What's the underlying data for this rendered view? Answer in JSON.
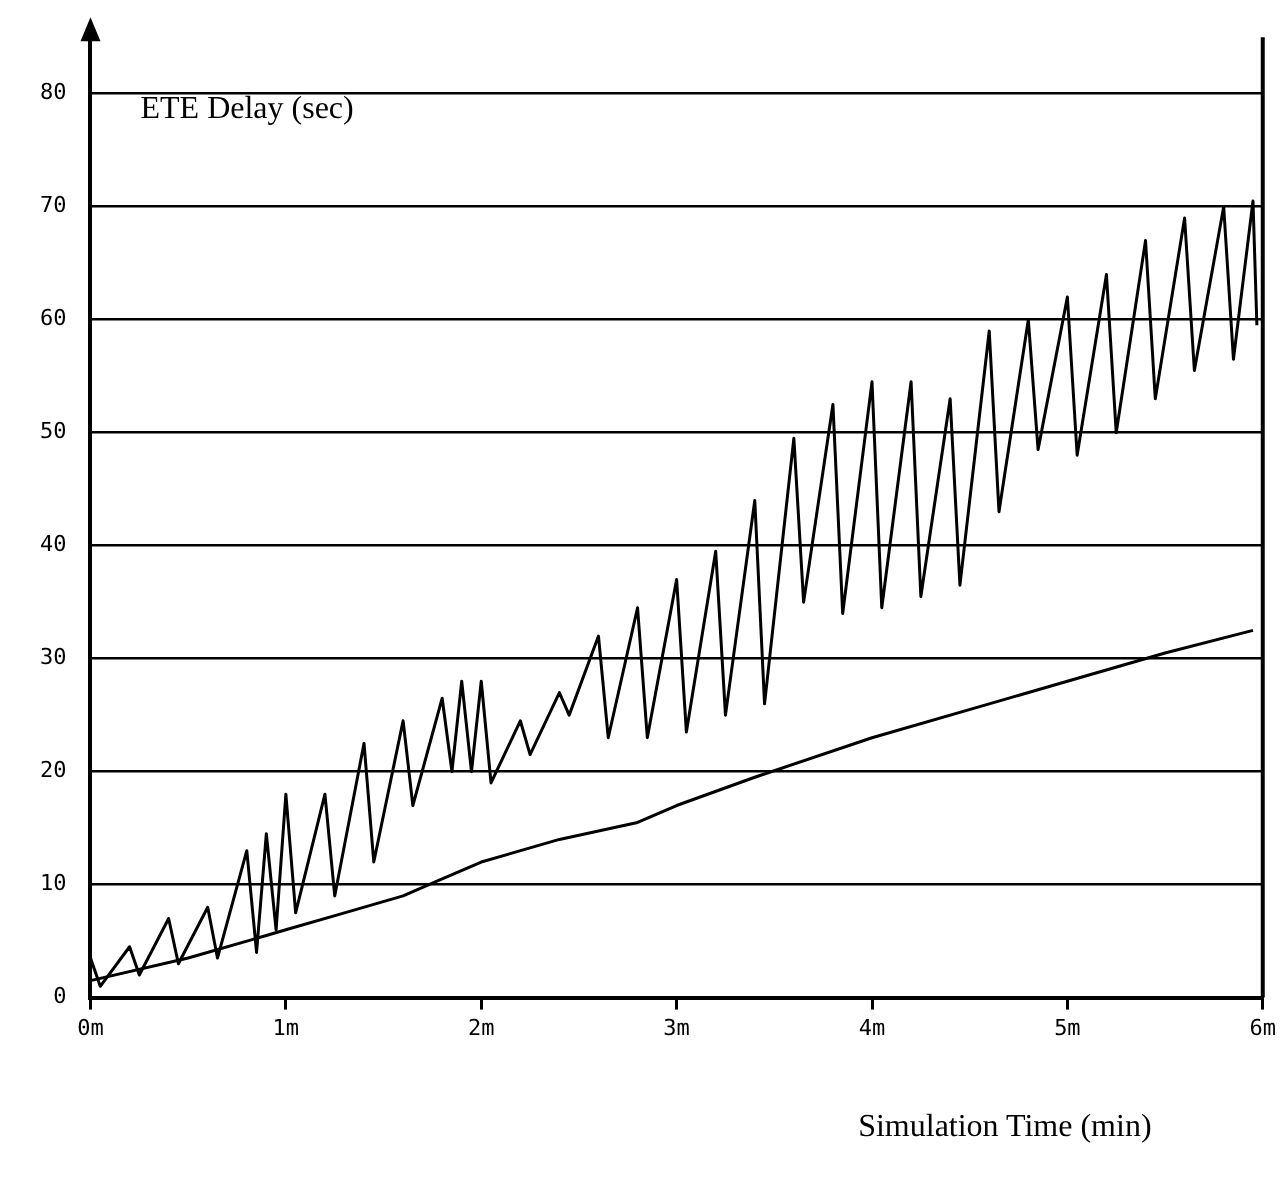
{
  "chart_data": {
    "type": "line",
    "xlabel": "Simulation Time (min)",
    "ylabel": "ETE Delay (sec)",
    "series": [
      {
        "color": "#000000",
        "x": [
          0,
          0.05,
          0.2,
          0.25,
          0.4,
          0.45,
          0.6,
          0.65,
          0.8,
          0.85,
          0.9,
          0.95,
          1.0,
          1.05,
          1.2,
          1.25,
          1.4,
          1.45,
          1.6,
          1.65,
          1.8,
          1.85,
          1.9,
          1.95,
          2.0,
          2.05,
          2.2,
          2.25,
          2.4,
          2.45,
          2.6,
          2.65,
          2.8,
          2.85,
          3.0,
          3.05,
          3.2,
          3.25,
          3.4,
          3.45,
          3.6,
          3.65,
          3.8,
          3.85,
          4.0,
          4.05,
          4.2,
          4.25,
          4.4,
          4.45,
          4.6,
          4.65,
          4.8,
          4.85,
          5.0,
          5.05,
          5.2,
          5.25,
          5.4,
          5.45,
          5.6,
          5.65,
          5.8,
          5.85,
          5.95,
          5.97
        ],
        "values": [
          3.5,
          1,
          4.5,
          2,
          7,
          3,
          8,
          3.5,
          13,
          4,
          14.5,
          6,
          18,
          7.5,
          18,
          9,
          22.5,
          12,
          24.5,
          17,
          26.5,
          20,
          28,
          20,
          28,
          19,
          24.5,
          21.5,
          27,
          25,
          32,
          23,
          34.5,
          23,
          37,
          23.5,
          39.5,
          25,
          44,
          26,
          49.5,
          35,
          52.5,
          34,
          54.5,
          34.5,
          54.5,
          35.5,
          53,
          36.5,
          59,
          43,
          60,
          48.5,
          62,
          48,
          64,
          50,
          67,
          53,
          69,
          55.5,
          70,
          56.5,
          70.5,
          59.5
        ]
      },
      {
        "color": "#000000",
        "x": [
          0,
          0.5,
          0.9,
          1.0,
          1.3,
          1.6,
          1.8,
          2.0,
          2.4,
          2.8,
          3.0,
          3.4,
          4.0,
          4.6,
          5.0,
          5.5,
          5.95
        ],
        "values": [
          1.5,
          3.5,
          5.5,
          6,
          7.5,
          9,
          10.5,
          12,
          14,
          15.5,
          17,
          19.5,
          23,
          26,
          28,
          30.5,
          32.5
        ]
      }
    ],
    "xlim": [
      0,
      6
    ],
    "xticks": [
      {
        "value": 0,
        "label": "0m"
      },
      {
        "value": 1,
        "label": "1m"
      },
      {
        "value": 2,
        "label": "2m"
      },
      {
        "value": 3,
        "label": "3m"
      },
      {
        "value": 4,
        "label": "4m"
      },
      {
        "value": 5,
        "label": "5m"
      },
      {
        "value": 6,
        "label": "6m"
      }
    ],
    "ylim": [
      0,
      85
    ],
    "yticks": [
      0,
      10,
      20,
      30,
      40,
      50,
      60,
      70,
      80
    ],
    "grid": "y",
    "legend": false,
    "marker": "none",
    "line_style": "solid"
  }
}
